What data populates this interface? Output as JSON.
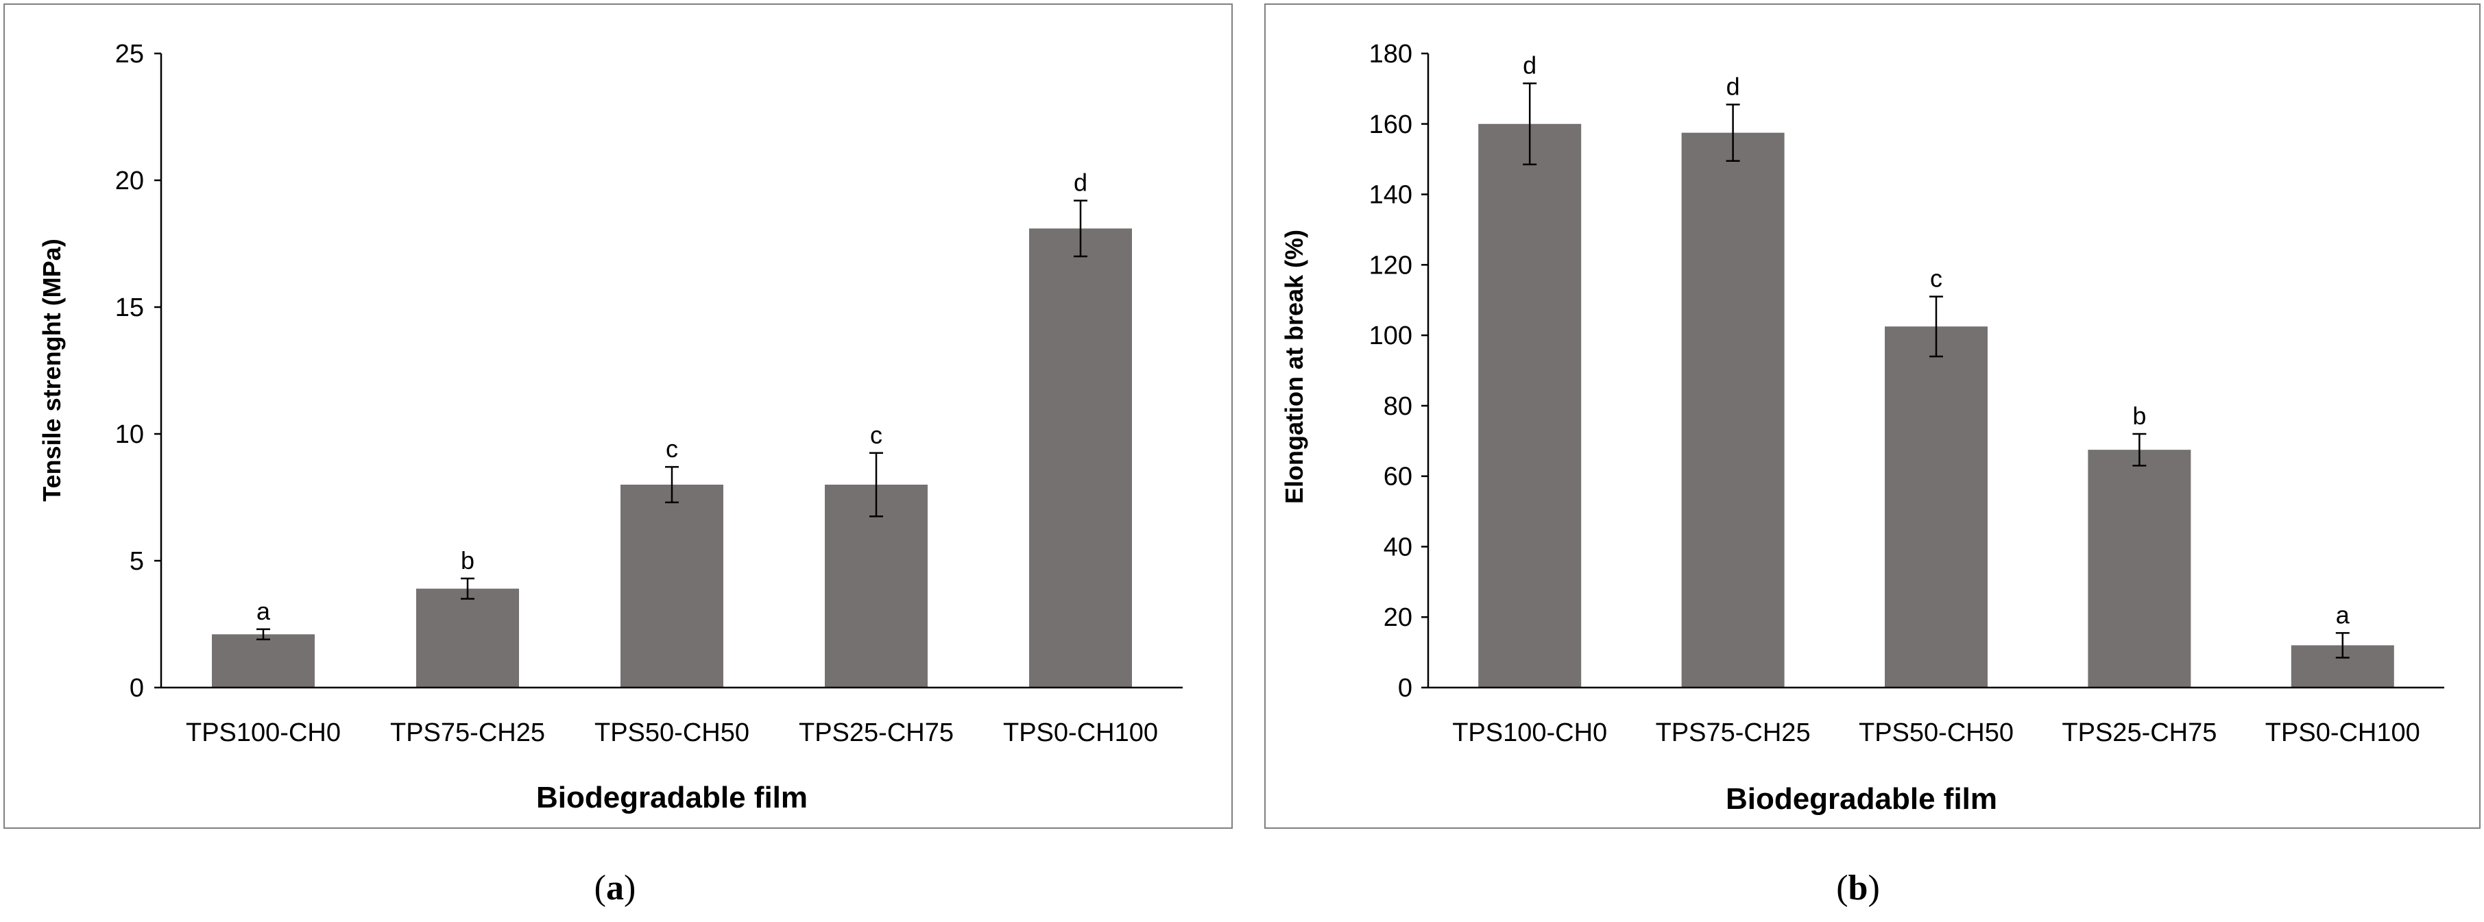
{
  "figure": {
    "caption_a": "(a)",
    "caption_a_letter": "a",
    "caption_b": "(b)",
    "caption_b_letter": "b"
  },
  "colors": {
    "bar": "#767171",
    "axis": "#000000",
    "frame": "#808080"
  },
  "chart_data": [
    {
      "type": "bar",
      "id": "a",
      "title": "",
      "xlabel": "Biodegradable film",
      "ylabel": "Tensile strenght  (MPa)",
      "categories": [
        "TPS100-CH0",
        "TPS75-CH25",
        "TPS50-CH50",
        "TPS25-CH75",
        "TPS0-CH100"
      ],
      "values": [
        2.1,
        3.9,
        8.0,
        8.0,
        18.1
      ],
      "errors": [
        0.2,
        0.4,
        0.7,
        1.25,
        1.1
      ],
      "significance": [
        "a",
        "b",
        "c",
        "c",
        "d"
      ],
      "ylim": [
        0,
        25
      ],
      "yticks": [
        0,
        5,
        10,
        15,
        20,
        25
      ],
      "grid": false
    },
    {
      "type": "bar",
      "id": "b",
      "title": "",
      "xlabel": "Biodegradable film",
      "ylabel": "Elongation at break (%)",
      "categories": [
        "TPS100-CH0",
        "TPS75-CH25",
        "TPS50-CH50",
        "TPS25-CH75",
        "TPS0-CH100"
      ],
      "values": [
        160,
        157.5,
        102.5,
        67.5,
        12
      ],
      "errors": [
        11.5,
        8,
        8.5,
        4.5,
        3.5
      ],
      "significance": [
        "d",
        "d",
        "c",
        "b",
        "a"
      ],
      "ylim": [
        0,
        180
      ],
      "yticks": [
        0,
        20,
        40,
        60,
        80,
        100,
        120,
        140,
        160,
        180
      ],
      "grid": false
    }
  ]
}
